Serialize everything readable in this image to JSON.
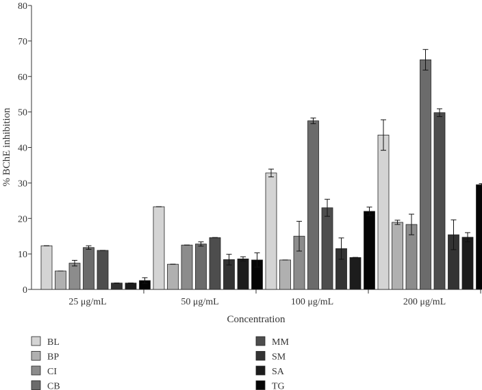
{
  "chart_data": {
    "type": "bar",
    "title": "",
    "xlabel": "Concentration",
    "ylabel": "% BChE inhibition",
    "ylim": [
      0,
      80
    ],
    "yticks": [
      0,
      10,
      20,
      30,
      40,
      50,
      60,
      70,
      80
    ],
    "categories": [
      "25 μg/mL",
      "50 μg/mL",
      "100 μg/mL",
      "200 μg/mL"
    ],
    "series": [
      {
        "name": "BL",
        "color": "#d4d4d4",
        "values": [
          12.3,
          23.3,
          32.8,
          43.5
        ],
        "errors": [
          0.0,
          0.0,
          1.1,
          4.3
        ]
      },
      {
        "name": "BP",
        "color": "#b0b0b0",
        "values": [
          5.2,
          7.1,
          8.3,
          18.9
        ],
        "errors": [
          0.0,
          0.0,
          0.0,
          0.6
        ]
      },
      {
        "name": "CI",
        "color": "#8c8c8c",
        "values": [
          7.4,
          12.5,
          15.0,
          18.3
        ],
        "errors": [
          0.8,
          0.0,
          4.2,
          2.9
        ]
      },
      {
        "name": "CB",
        "color": "#6b6b6b",
        "values": [
          11.8,
          12.8,
          47.5,
          64.7
        ],
        "errors": [
          0.5,
          0.6,
          0.8,
          2.9
        ]
      },
      {
        "name": "MM",
        "color": "#4d4d4d",
        "values": [
          11.0,
          14.6,
          23.0,
          49.8
        ],
        "errors": [
          0.0,
          0.0,
          2.4,
          1.1
        ]
      },
      {
        "name": "SM",
        "color": "#333333",
        "values": [
          1.8,
          8.4,
          11.5,
          15.4
        ],
        "errors": [
          0.0,
          1.5,
          3.0,
          4.2
        ]
      },
      {
        "name": "SA",
        "color": "#1c1c1c",
        "values": [
          1.8,
          8.6,
          9.0,
          14.7
        ],
        "errors": [
          0.0,
          0.6,
          0.0,
          1.3
        ]
      },
      {
        "name": "TG",
        "color": "#050505",
        "values": [
          2.5,
          8.3,
          22.0,
          29.5
        ],
        "errors": [
          0.8,
          2.0,
          1.2,
          0.3
        ]
      }
    ]
  }
}
